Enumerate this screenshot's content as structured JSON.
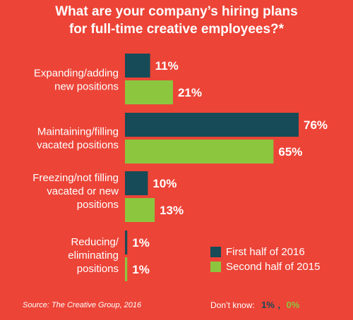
{
  "chart_data": {
    "type": "bar",
    "orientation": "horizontal",
    "title_lines": [
      "What are your company’s hiring plans",
      "for full-time creative employees?*"
    ],
    "categories": [
      [
        "Expanding/adding",
        "new positions"
      ],
      [
        "Maintaining/filling",
        "vacated positions"
      ],
      [
        "Freezing/not filling",
        "vacated or new",
        "positions"
      ],
      [
        "Reducing/",
        "eliminating",
        "positions"
      ]
    ],
    "series": [
      {
        "name": "First half of 2016",
        "color": "#174b57",
        "values": [
          11,
          76,
          10,
          1
        ],
        "labels": [
          "11%",
          "76%",
          "10%",
          "1%"
        ]
      },
      {
        "name": "Second half of 2015",
        "color": "#8cc63f",
        "values": [
          21,
          65,
          13,
          1
        ],
        "labels": [
          "21%",
          "65%",
          "13%",
          "1%"
        ]
      }
    ],
    "xlim": [
      0,
      100
    ],
    "grid": false,
    "legend_position": "bottom-right",
    "source": "Source: The Creative Group, 2016",
    "dont_know": {
      "label": "Don’t know:",
      "first_half_2016": "1%",
      "separator": ",",
      "second_half_2015": "0%"
    }
  }
}
